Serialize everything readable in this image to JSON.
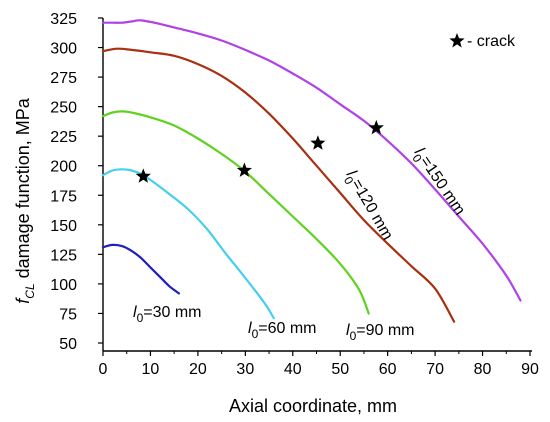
{
  "chart_data": {
    "type": "line",
    "xlabel": "Axial coordinate, mm",
    "ylabel": {
      "prefix": "f",
      "subscript": "CL",
      "suffix": " damage function, MPa"
    },
    "xlim": [
      0,
      90
    ],
    "ylim": [
      50,
      325
    ],
    "xticks": [
      0,
      10,
      20,
      30,
      40,
      50,
      60,
      70,
      80,
      90
    ],
    "yticks": [
      50,
      75,
      100,
      125,
      150,
      175,
      200,
      225,
      250,
      275,
      300,
      325
    ],
    "legend": {
      "position": "top-right",
      "symbol": "star",
      "text": " - crack"
    },
    "series": [
      {
        "name": "l0=30 mm",
        "label": {
          "l": "l",
          "sub": "0",
          "rest": "=30 mm"
        },
        "color": "#1f1fbf",
        "x": [
          0,
          2,
          4,
          6,
          8,
          10,
          12,
          14,
          16
        ],
        "y": [
          131,
          133,
          132,
          128,
          122,
          114,
          106,
          98,
          92
        ],
        "crack": null
      },
      {
        "name": "l0=60 mm",
        "label": {
          "l": "l",
          "sub": "0",
          "rest": "=60 mm"
        },
        "color": "#44cfef",
        "x": [
          0,
          2,
          4,
          6,
          8,
          10,
          14,
          18,
          22,
          26,
          30,
          34,
          36
        ],
        "y": [
          192,
          196,
          197,
          196,
          193,
          188,
          176,
          163,
          146,
          125,
          105,
          84,
          71
        ],
        "crack": [
          8.5,
          191
        ]
      },
      {
        "name": "l0=90 mm",
        "label": {
          "l": "l",
          "sub": "0",
          "rest": "=90 mm"
        },
        "color": "#5fd21f",
        "x": [
          0,
          2,
          4,
          6,
          10,
          15,
          20,
          25,
          30,
          35,
          40,
          45,
          50,
          54,
          56
        ],
        "y": [
          242,
          245,
          246,
          245,
          241,
          234,
          223,
          210,
          195,
          176,
          157,
          138,
          117,
          95,
          75
        ],
        "crack": [
          29.8,
          196
        ]
      },
      {
        "name": "l0=120 mm",
        "label": {
          "l": "l",
          "sub": "0",
          "rest": "=120 mm"
        },
        "color": "#a83010",
        "x": [
          0,
          3,
          6,
          10,
          15,
          20,
          25,
          30,
          35,
          40,
          45,
          50,
          55,
          60,
          65,
          70,
          74
        ],
        "y": [
          297,
          299,
          298,
          296,
          293,
          286,
          276,
          262,
          244,
          223,
          200,
          177,
          154,
          134,
          115,
          96,
          68
        ],
        "crack": [
          45.3,
          219
        ]
      },
      {
        "name": "l0=150 mm",
        "label": {
          "l": "l",
          "sub": "0",
          "rest": "=150 mm"
        },
        "color": "#b040e8",
        "x": [
          0,
          2,
          4,
          6,
          8,
          12,
          16,
          20,
          25,
          30,
          35,
          40,
          45,
          50,
          55,
          60,
          65,
          70,
          75,
          80,
          85,
          88
        ],
        "y": [
          321,
          321,
          321,
          322,
          323,
          320,
          316,
          312,
          306,
          298,
          289,
          278,
          266,
          252,
          238,
          221,
          202,
          180,
          157,
          134,
          107,
          86
        ],
        "crack": [
          57.6,
          232
        ]
      }
    ]
  }
}
